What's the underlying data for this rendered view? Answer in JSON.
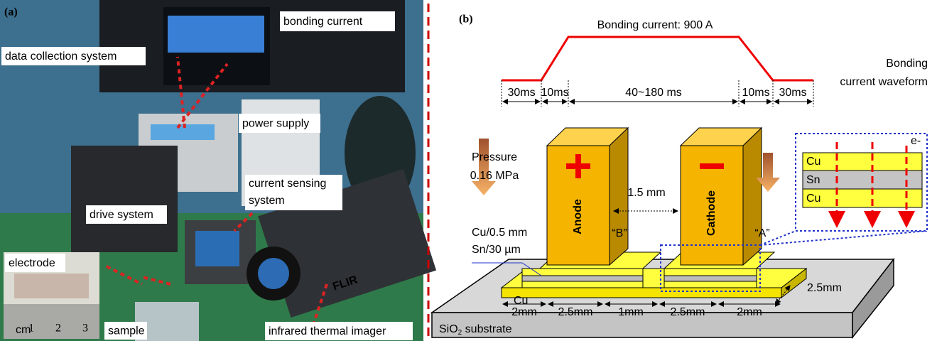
{
  "panel_a": {
    "label": "(a)",
    "callouts": {
      "bonding_current": "bonding  current",
      "data_collection": "data collection system",
      "power_supply": "power supply",
      "current_sensing": [
        "current sensing",
        "system"
      ],
      "drive_system": "drive system",
      "electrode": "electrode",
      "sample": "sample",
      "thermal_imager": "infrared thermal imager"
    },
    "ruler": {
      "unit": "cm",
      "marks": [
        "1",
        "2",
        "3"
      ]
    },
    "brand": "FLIR"
  },
  "panel_b": {
    "label": "(b)",
    "waveform": {
      "title": "Bonding current: 900 A",
      "caption": [
        "Bonding",
        "current waveform"
      ],
      "durations": [
        "30ms",
        "10ms",
        "40~180 ms",
        "10ms",
        "30ms"
      ]
    },
    "pressure": [
      "Pressure",
      "0.16 MPa"
    ],
    "anode": "Anode",
    "cathode": "Cathode",
    "gap": "1.5 mm",
    "layers": [
      "Cu/0.5 mm",
      "Sn/30 µm"
    ],
    "markers": [
      "“B”",
      "“A”"
    ],
    "cu_label": "Cu",
    "inset": {
      "layers": [
        "Cu",
        "Sn",
        "Cu"
      ],
      "carrier": "e-"
    },
    "widths": [
      "2mm",
      "2.5mm",
      "1mm",
      "2.5mm",
      "2mm"
    ],
    "depth": "2.5mm",
    "substrate": [
      "SiO",
      "2",
      " substrate"
    ]
  }
}
